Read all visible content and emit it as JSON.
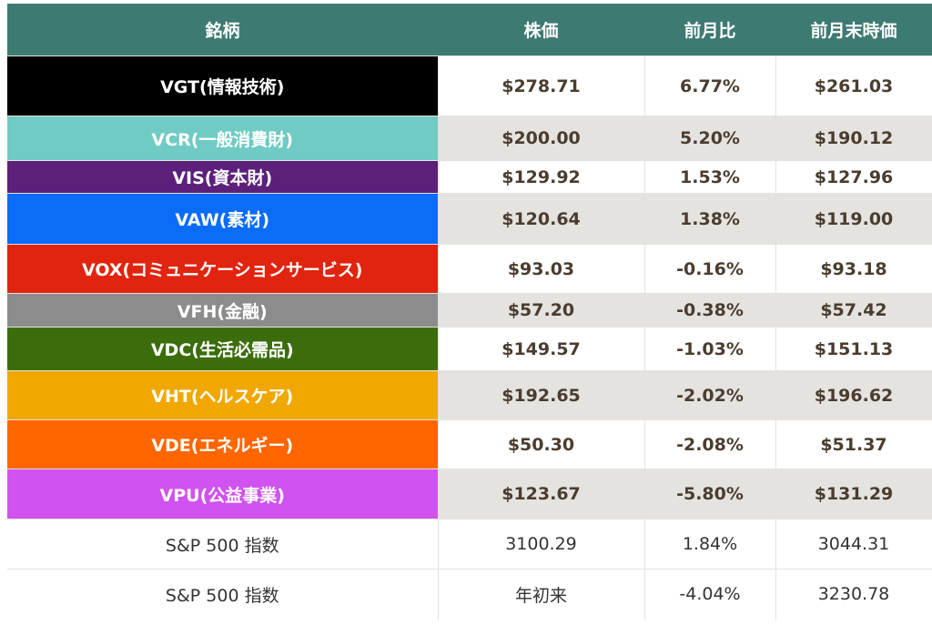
{
  "header": {
    "name": "銘柄",
    "price": "株価",
    "change": "前月比",
    "prev_close": "前月末時価"
  },
  "rows": [
    {
      "name": "VGT(情報技術)",
      "price": "$278.71",
      "change": "6.77%",
      "prev_close": "$261.03",
      "color": "#000000"
    },
    {
      "name": "VCR(一般消費財)",
      "price": "$200.00",
      "change": "5.20%",
      "prev_close": "$190.12",
      "color": "#6fcbc4"
    },
    {
      "name": "VIS(資本財)",
      "price": "$129.92",
      "change": "1.53%",
      "prev_close": "$127.96",
      "color": "#5c1f7a"
    },
    {
      "name": "VAW(素材)",
      "price": "$120.64",
      "change": "1.38%",
      "prev_close": "$119.00",
      "color": "#0a6cf7"
    },
    {
      "name": "VOX(コミュニケーションサービス)",
      "price": "$93.03",
      "change": "-0.16%",
      "prev_close": "$93.18",
      "color": "#e0240f"
    },
    {
      "name": "VFH(金融)",
      "price": "$57.20",
      "change": "-0.38%",
      "prev_close": "$57.42",
      "color": "#8c8c8c"
    },
    {
      "name": "VDC(生活必需品)",
      "price": "$149.57",
      "change": "-1.03%",
      "prev_close": "$151.13",
      "color": "#3c6d0c"
    },
    {
      "name": "VHT(ヘルスケア)",
      "price": "$192.65",
      "change": "-2.02%",
      "prev_close": "$196.62",
      "color": "#f0a800"
    },
    {
      "name": "VDE(エネルギー)",
      "price": "$50.30",
      "change": "-2.08%",
      "prev_close": "$51.37",
      "color": "#ff6600"
    },
    {
      "name": "VPU(公益事業)",
      "price": "$123.67",
      "change": "-5.80%",
      "prev_close": "$131.29",
      "color": "#d052f0"
    }
  ],
  "index_rows": [
    {
      "name": "S&P 500 指数",
      "price": "3100.29",
      "change": "1.84%",
      "prev_close": "3044.31"
    },
    {
      "name": "S&P 500 指数",
      "price": "年初来",
      "change": "-4.04%",
      "prev_close": "3230.78"
    }
  ]
}
